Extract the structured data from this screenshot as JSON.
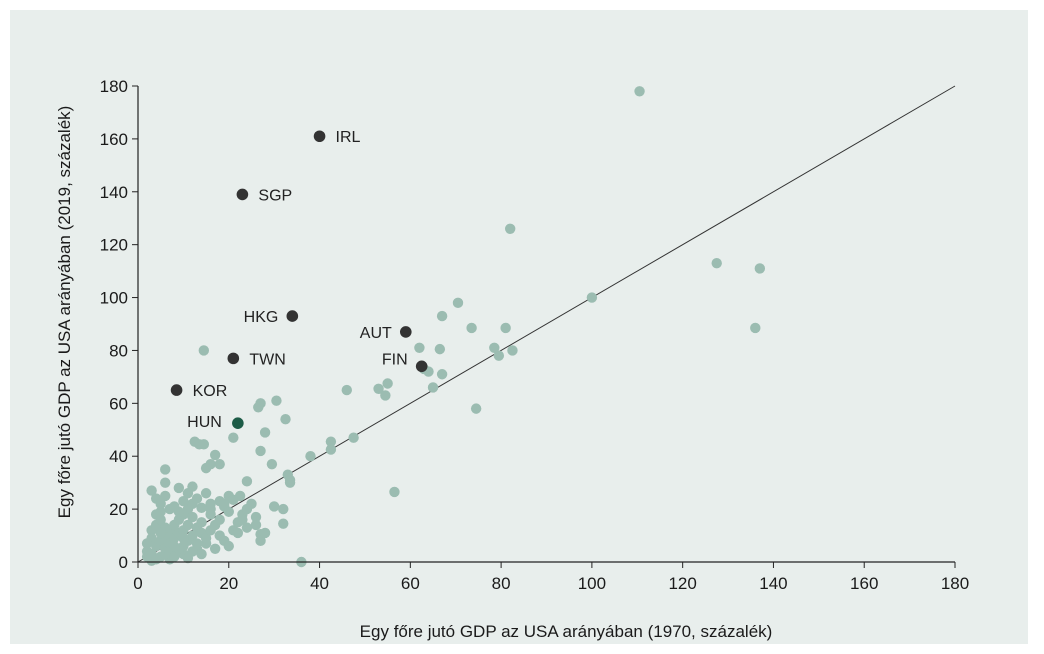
{
  "chart_data": {
    "type": "scatter",
    "xlabel": "Egy főre jutó GDP az USA arányában (1970, százalék)",
    "ylabel": "Egy főre jutó GDP az USA arányában (2019, százalék)",
    "xlim": [
      0,
      180
    ],
    "ylim": [
      0,
      180
    ],
    "x_ticks": [
      0,
      20,
      40,
      60,
      80,
      100,
      120,
      140,
      160,
      180
    ],
    "y_ticks": [
      0,
      20,
      40,
      60,
      80,
      100,
      120,
      140,
      160,
      180
    ],
    "grid": false,
    "reference_line": "45-degree line",
    "colors": {
      "points": "#9bbcb1",
      "highlight": "#333333",
      "hun": "#1d5c47",
      "hun_label": "#2f6d58",
      "line": "#333333"
    },
    "highlighted": [
      {
        "label": "IRL",
        "x": 40,
        "y": 161
      },
      {
        "label": "SGP",
        "x": 23,
        "y": 139
      },
      {
        "label": "HKG",
        "x": 34,
        "y": 93
      },
      {
        "label": "AUT",
        "x": 59,
        "y": 87
      },
      {
        "label": "TWN",
        "x": 21,
        "y": 77
      },
      {
        "label": "FIN",
        "x": 62.5,
        "y": 74
      },
      {
        "label": "KOR",
        "x": 8.5,
        "y": 65
      },
      {
        "label": "HUN",
        "x": 22,
        "y": 52.5
      }
    ],
    "points": [
      [
        110.5,
        178
      ],
      [
        82,
        126
      ],
      [
        127.5,
        113
      ],
      [
        137,
        111
      ],
      [
        100,
        100
      ],
      [
        70.5,
        98
      ],
      [
        67,
        93
      ],
      [
        73.5,
        88.5
      ],
      [
        81,
        88.5
      ],
      [
        136,
        88.5
      ],
      [
        62,
        81
      ],
      [
        66.5,
        80.5
      ],
      [
        78.5,
        81
      ],
      [
        82.5,
        80
      ],
      [
        79.5,
        78
      ],
      [
        14.5,
        80
      ],
      [
        63,
        73
      ],
      [
        67,
        71
      ],
      [
        64,
        72
      ],
      [
        55,
        67.5
      ],
      [
        53,
        65.5
      ],
      [
        46,
        65
      ],
      [
        65,
        66
      ],
      [
        54.5,
        63
      ],
      [
        74.5,
        58
      ],
      [
        27,
        60
      ],
      [
        26.5,
        58.5
      ],
      [
        30.5,
        61
      ],
      [
        32.5,
        54
      ],
      [
        28,
        49
      ],
      [
        21,
        47
      ],
      [
        42.5,
        45.5
      ],
      [
        47.5,
        47
      ],
      [
        42.5,
        42.5
      ],
      [
        38,
        40
      ],
      [
        27,
        42
      ],
      [
        29.5,
        37
      ],
      [
        12.5,
        45.5
      ],
      [
        13.5,
        44.5
      ],
      [
        14.5,
        44.5
      ],
      [
        17,
        40.5
      ],
      [
        15,
        35.5
      ],
      [
        6,
        35
      ],
      [
        16,
        37
      ],
      [
        18,
        37
      ],
      [
        33,
        33
      ],
      [
        33.5,
        31
      ],
      [
        33.5,
        30
      ],
      [
        24,
        30.5
      ],
      [
        6,
        30
      ],
      [
        3,
        27
      ],
      [
        9,
        28
      ],
      [
        12,
        28.5
      ],
      [
        56.5,
        26.5
      ],
      [
        20,
        25
      ],
      [
        22.5,
        25
      ],
      [
        21,
        23.5
      ],
      [
        18,
        23
      ],
      [
        16,
        22
      ],
      [
        19,
        21
      ],
      [
        14,
        20.5
      ],
      [
        11,
        20
      ],
      [
        10,
        18
      ],
      [
        5,
        19
      ],
      [
        4,
        18
      ],
      [
        23,
        18
      ],
      [
        26,
        14
      ],
      [
        32,
        20
      ],
      [
        32,
        14.5
      ],
      [
        27,
        10.5
      ],
      [
        27,
        8
      ],
      [
        36,
        0
      ],
      [
        15,
        7
      ],
      [
        13,
        5
      ],
      [
        10,
        3
      ],
      [
        11,
        1.5
      ],
      [
        7,
        1
      ],
      [
        3,
        0.5
      ],
      [
        2,
        4
      ],
      [
        4,
        6
      ],
      [
        5,
        8
      ],
      [
        6,
        10
      ],
      [
        7,
        12
      ],
      [
        8,
        14
      ],
      [
        9,
        16
      ],
      [
        12,
        17
      ],
      [
        13,
        13
      ],
      [
        14,
        11
      ],
      [
        15,
        9
      ],
      [
        16,
        12
      ],
      [
        17,
        14
      ],
      [
        18,
        10
      ],
      [
        19,
        8
      ],
      [
        20,
        6
      ],
      [
        21,
        12
      ],
      [
        22,
        15
      ],
      [
        23,
        16
      ],
      [
        24,
        20
      ],
      [
        25,
        22
      ],
      [
        3,
        12
      ],
      [
        4,
        14
      ],
      [
        5,
        16
      ],
      [
        6,
        5
      ],
      [
        7,
        7
      ],
      [
        8,
        9
      ],
      [
        9,
        11
      ],
      [
        10,
        6
      ],
      [
        11,
        8
      ],
      [
        12,
        10
      ],
      [
        2,
        2
      ],
      [
        3,
        3
      ],
      [
        4,
        1
      ],
      [
        5,
        2
      ],
      [
        6,
        3
      ],
      [
        7,
        4
      ],
      [
        8,
        2
      ],
      [
        9,
        5
      ],
      [
        10,
        12
      ],
      [
        11,
        14
      ],
      [
        13,
        7
      ],
      [
        14,
        3
      ],
      [
        16,
        18
      ],
      [
        17,
        5
      ],
      [
        18,
        16
      ],
      [
        19,
        22
      ],
      [
        20,
        19
      ],
      [
        22,
        11
      ],
      [
        24,
        13
      ],
      [
        26,
        17
      ],
      [
        28,
        11
      ],
      [
        30,
        21
      ],
      [
        12,
        22
      ],
      [
        10,
        23
      ],
      [
        8,
        21
      ],
      [
        6,
        25
      ],
      [
        4,
        24
      ],
      [
        15,
        26
      ],
      [
        13,
        24
      ],
      [
        11,
        26
      ],
      [
        9,
        19
      ],
      [
        7,
        20
      ],
      [
        5,
        22
      ],
      [
        3,
        9
      ],
      [
        2,
        7
      ],
      [
        6,
        13
      ],
      [
        8,
        6
      ],
      [
        10,
        9
      ],
      [
        12,
        4
      ],
      [
        14,
        15
      ],
      [
        16,
        20
      ],
      [
        5,
        11
      ]
    ]
  }
}
